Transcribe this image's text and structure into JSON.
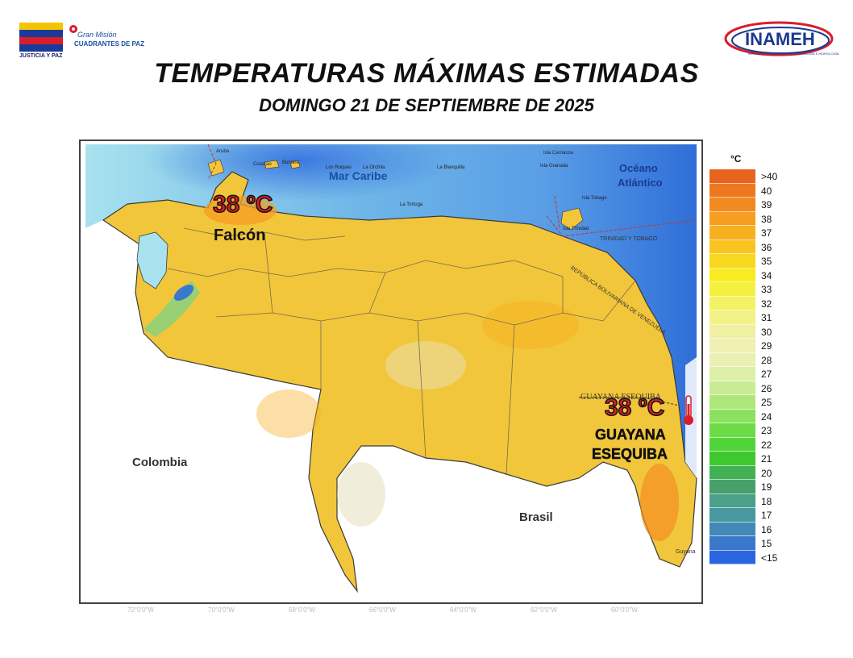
{
  "header": {
    "title": "TEMPERATURAS MÁXIMAS ESTIMADAS",
    "subtitle": "DOMINGO 21 DE SEPTIEMBRE DE 2025",
    "logo_left_top": "JUSTICIA Y PAZ",
    "logo_left_gm": "Gran Misión",
    "logo_left_cp": "CUADRANTES DE PAZ",
    "logo_right": "INAMEH",
    "logo_right_sub": "INSTITUTO NACIONAL DE METEOROLOGÍA E HIDROLOGÍA"
  },
  "map": {
    "sea_labels": {
      "caribe": "Mar Caribe",
      "atlantico_1": "Océano",
      "atlantico_2": "Atlántico"
    },
    "country_labels": {
      "colombia": "Colombia",
      "brasil": "Brasil",
      "guyana": "Guyana",
      "trinidad": "TRINIDAD Y TOBAGO",
      "rbv": "REPÚBLICA BOLIVARIANA DE VENEZUELA",
      "esequiba_border": "GUAYANA ESEQUIBA"
    },
    "islands": {
      "aruba": "Aruba",
      "curazao": "Curazao",
      "bonaire": "Bonaire",
      "roques": "Los Roques",
      "orchila": "La Orchila",
      "blanquilla": "La Blanquilla",
      "tortuga": "La Tortuga",
      "carriacou": "Isla Carriacou",
      "granada": "Isla Granada",
      "tobago": "Isla Tobago",
      "trinidad_isla": "Isla Trinidad"
    },
    "highlights": [
      {
        "temp": "38 ºC",
        "region": "Falcón"
      },
      {
        "temp": "38 ºC",
        "region_line1": "GUAYANA",
        "region_line2": "ESEQUIBA"
      }
    ],
    "coords": [
      "72°0'0\"W",
      "70°0'0\"W",
      "68°0'0\"W",
      "66°0'0\"W",
      "64°0'0\"W",
      "62°0'0\"W",
      "60°0'0\"W"
    ]
  },
  "legend": {
    "unit": "°C",
    "items": [
      {
        "label": ">40",
        "color": "#e8641e"
      },
      {
        "label": "40",
        "color": "#ee7820"
      },
      {
        "label": "39",
        "color": "#f28a22"
      },
      {
        "label": "38",
        "color": "#f59e22"
      },
      {
        "label": "37",
        "color": "#f7b020"
      },
      {
        "label": "36",
        "color": "#f9c420"
      },
      {
        "label": "35",
        "color": "#f8d81e"
      },
      {
        "label": "34",
        "color": "#f8ec20"
      },
      {
        "label": "33",
        "color": "#f5f040"
      },
      {
        "label": "32",
        "color": "#f3f265"
      },
      {
        "label": "31",
        "color": "#f2f288"
      },
      {
        "label": "30",
        "color": "#f0f0a2"
      },
      {
        "label": "29",
        "color": "#eef0b4"
      },
      {
        "label": "28",
        "color": "#eaf0b4"
      },
      {
        "label": "27",
        "color": "#dcf0a8"
      },
      {
        "label": "26",
        "color": "#c8ec94"
      },
      {
        "label": "25",
        "color": "#aee87a"
      },
      {
        "label": "24",
        "color": "#8ce25e"
      },
      {
        "label": "23",
        "color": "#6cdc46"
      },
      {
        "label": "22",
        "color": "#50d43a"
      },
      {
        "label": "21",
        "color": "#3ec82e"
      },
      {
        "label": "20",
        "color": "#42b054"
      },
      {
        "label": "19",
        "color": "#48a06c"
      },
      {
        "label": "18",
        "color": "#4aa08a"
      },
      {
        "label": "17",
        "color": "#4898a0"
      },
      {
        "label": "16",
        "color": "#4288b8"
      },
      {
        "label": "15",
        "color": "#3a78cc"
      },
      {
        "label": "<15",
        "color": "#2a66e0"
      }
    ]
  }
}
